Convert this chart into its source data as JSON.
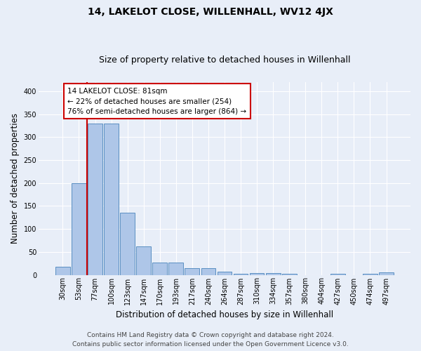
{
  "title": "14, LAKELOT CLOSE, WILLENHALL, WV12 4JX",
  "subtitle": "Size of property relative to detached houses in Willenhall",
  "xlabel": "Distribution of detached houses by size in Willenhall",
  "ylabel": "Number of detached properties",
  "bar_labels": [
    "30sqm",
    "53sqm",
    "77sqm",
    "100sqm",
    "123sqm",
    "147sqm",
    "170sqm",
    "193sqm",
    "217sqm",
    "240sqm",
    "264sqm",
    "287sqm",
    "310sqm",
    "334sqm",
    "357sqm",
    "380sqm",
    "404sqm",
    "427sqm",
    "450sqm",
    "474sqm",
    "497sqm"
  ],
  "bar_values": [
    18,
    200,
    330,
    330,
    135,
    62,
    27,
    27,
    15,
    14,
    7,
    2,
    4,
    4,
    2,
    0,
    0,
    2,
    0,
    2,
    5
  ],
  "bar_color": "#aec6e8",
  "bar_edge_color": "#5a8fc2",
  "vline_color": "#cc0000",
  "vline_x": 1.5,
  "annotation_line1": "14 LAKELOT CLOSE: 81sqm",
  "annotation_line2": "← 22% of detached houses are smaller (254)",
  "annotation_line3": "76% of semi-detached houses are larger (864) →",
  "annotation_box_color": "#ffffff",
  "annotation_box_edge": "#cc0000",
  "ylim": [
    0,
    420
  ],
  "yticks": [
    0,
    50,
    100,
    150,
    200,
    250,
    300,
    350,
    400
  ],
  "background_color": "#e8eef8",
  "plot_bg_color": "#e8eef8",
  "footer_line1": "Contains HM Land Registry data © Crown copyright and database right 2024.",
  "footer_line2": "Contains public sector information licensed under the Open Government Licence v3.0.",
  "title_fontsize": 10,
  "subtitle_fontsize": 9,
  "xlabel_fontsize": 8.5,
  "ylabel_fontsize": 8.5,
  "tick_fontsize": 7,
  "annotation_fontsize": 7.5,
  "footer_fontsize": 6.5
}
